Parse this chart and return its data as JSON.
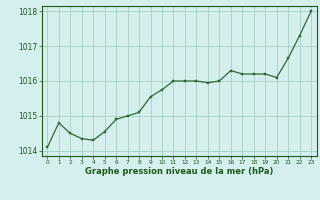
{
  "x": [
    0,
    1,
    2,
    3,
    4,
    5,
    6,
    7,
    8,
    9,
    10,
    11,
    12,
    13,
    14,
    15,
    16,
    17,
    18,
    19,
    20,
    21,
    22,
    23
  ],
  "y": [
    1014.1,
    1014.8,
    1014.5,
    1014.35,
    1014.3,
    1014.55,
    1014.9,
    1015.0,
    1015.1,
    1015.55,
    1015.75,
    1016.0,
    1016.0,
    1016.0,
    1015.95,
    1016.0,
    1016.3,
    1016.2,
    1016.2,
    1016.2,
    1016.1,
    1016.65,
    1017.3,
    1018.0
  ],
  "line_color": "#2d6a2d",
  "marker_color": "#2d6a2d",
  "bg_color": "#d5eeee",
  "grid_color": "#99ccbb",
  "xlabel": "Graphe pression niveau de la mer (hPa)",
  "xlabel_color": "#1a5c1a",
  "tick_color": "#1a5c1a",
  "ylim": [
    1013.85,
    1018.15
  ],
  "xlim": [
    -0.5,
    23.5
  ],
  "yticks": [
    1014,
    1015,
    1016,
    1017,
    1018
  ],
  "xticks": [
    0,
    1,
    2,
    3,
    4,
    5,
    6,
    7,
    8,
    9,
    10,
    11,
    12,
    13,
    14,
    15,
    16,
    17,
    18,
    19,
    20,
    21,
    22,
    23
  ]
}
